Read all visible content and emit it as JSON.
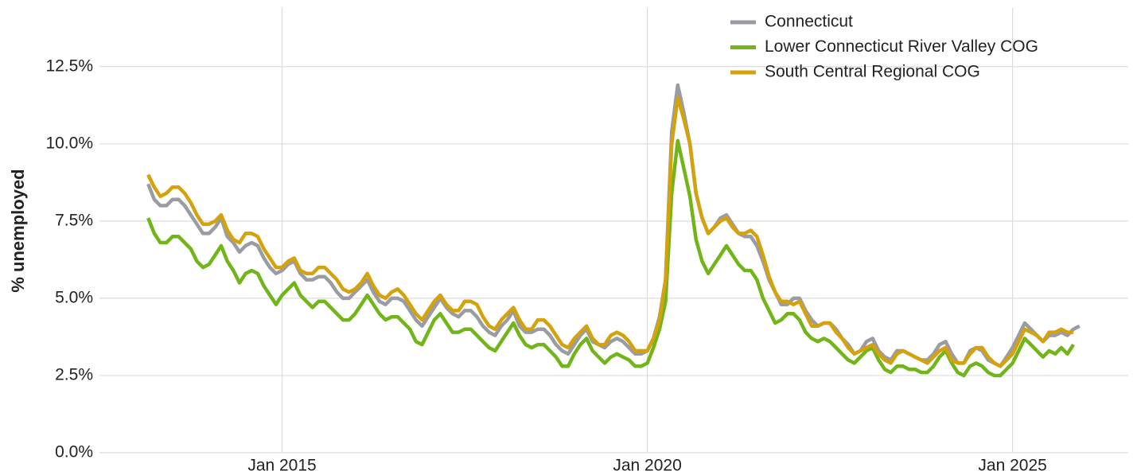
{
  "chart_data": {
    "type": "line",
    "y_label": "% unemployed",
    "x": [
      "2013-03",
      "2013-04",
      "2013-05",
      "2013-06",
      "2013-07",
      "2013-08",
      "2013-09",
      "2013-10",
      "2013-11",
      "2013-12",
      "2014-01",
      "2014-02",
      "2014-03",
      "2014-04",
      "2014-05",
      "2014-06",
      "2014-07",
      "2014-08",
      "2014-09",
      "2014-10",
      "2014-11",
      "2014-12",
      "2015-01",
      "2015-02",
      "2015-03",
      "2015-04",
      "2015-05",
      "2015-06",
      "2015-07",
      "2015-08",
      "2015-09",
      "2015-10",
      "2015-11",
      "2015-12",
      "2016-01",
      "2016-02",
      "2016-03",
      "2016-04",
      "2016-05",
      "2016-06",
      "2016-07",
      "2016-08",
      "2016-09",
      "2016-10",
      "2016-11",
      "2016-12",
      "2017-01",
      "2017-02",
      "2017-03",
      "2017-04",
      "2017-05",
      "2017-06",
      "2017-07",
      "2017-08",
      "2017-09",
      "2017-10",
      "2017-11",
      "2017-12",
      "2018-01",
      "2018-02",
      "2018-03",
      "2018-04",
      "2018-05",
      "2018-06",
      "2018-07",
      "2018-08",
      "2018-09",
      "2018-10",
      "2018-11",
      "2018-12",
      "2019-01",
      "2019-02",
      "2019-03",
      "2019-04",
      "2019-05",
      "2019-06",
      "2019-07",
      "2019-08",
      "2019-09",
      "2019-10",
      "2019-11",
      "2019-12",
      "2020-01",
      "2020-02",
      "2020-03",
      "2020-04",
      "2020-05",
      "2020-06",
      "2020-07",
      "2020-08",
      "2020-09",
      "2020-10",
      "2020-11",
      "2020-12",
      "2021-01",
      "2021-02",
      "2021-03",
      "2021-04",
      "2021-05",
      "2021-06",
      "2021-07",
      "2021-08",
      "2021-09",
      "2021-10",
      "2021-11",
      "2021-12",
      "2022-01",
      "2022-02",
      "2022-03",
      "2022-04",
      "2022-05",
      "2022-06",
      "2022-07",
      "2022-08",
      "2022-09",
      "2022-10",
      "2022-11",
      "2022-12",
      "2023-01",
      "2023-02",
      "2023-03",
      "2023-04",
      "2023-05",
      "2023-06",
      "2023-07",
      "2023-08",
      "2023-09",
      "2023-10",
      "2023-11",
      "2023-12",
      "2024-01",
      "2024-02",
      "2024-03",
      "2024-04",
      "2024-05",
      "2024-06",
      "2024-07",
      "2024-08",
      "2024-09",
      "2024-10",
      "2024-11",
      "2024-12",
      "2025-01",
      "2025-02",
      "2025-03",
      "2025-04",
      "2025-05",
      "2025-06",
      "2025-07",
      "2025-08",
      "2025-09",
      "2025-10",
      "2025-11",
      "2025-12"
    ],
    "series": [
      {
        "name": "Connecticut",
        "color": "#9a9ca3",
        "values": [
          8.7,
          8.2,
          8.0,
          8.0,
          8.2,
          8.2,
          8.0,
          7.7,
          7.4,
          7.1,
          7.1,
          7.3,
          7.6,
          7.0,
          6.8,
          6.5,
          6.7,
          6.8,
          6.7,
          6.3,
          6.0,
          5.8,
          5.9,
          6.1,
          6.2,
          5.8,
          5.6,
          5.6,
          5.7,
          5.7,
          5.5,
          5.2,
          5.0,
          5.0,
          5.2,
          5.4,
          5.6,
          5.2,
          4.9,
          4.8,
          5.0,
          5.0,
          4.9,
          4.6,
          4.3,
          4.1,
          4.4,
          4.7,
          5.0,
          4.7,
          4.5,
          4.4,
          4.6,
          4.6,
          4.4,
          4.1,
          3.9,
          3.8,
          4.1,
          4.3,
          4.6,
          4.1,
          3.9,
          3.9,
          4.0,
          4.0,
          3.8,
          3.5,
          3.3,
          3.2,
          3.5,
          3.8,
          4.0,
          3.6,
          3.5,
          3.4,
          3.6,
          3.7,
          3.6,
          3.4,
          3.2,
          3.2,
          3.3,
          3.7,
          4.4,
          5.6,
          10.4,
          11.9,
          11.0,
          10.0,
          8.4,
          7.6,
          7.1,
          7.3,
          7.6,
          7.7,
          7.4,
          7.1,
          7.0,
          7.0,
          6.7,
          6.2,
          5.6,
          5.2,
          4.8,
          4.8,
          5.0,
          5.0,
          4.6,
          4.3,
          4.1,
          4.2,
          4.2,
          4.0,
          3.7,
          3.5,
          3.2,
          3.3,
          3.6,
          3.7,
          3.3,
          3.1,
          3.0,
          3.3,
          3.3,
          3.2,
          3.1,
          3.0,
          3.0,
          3.2,
          3.5,
          3.6,
          3.2,
          2.9,
          2.9,
          3.3,
          3.4,
          3.3,
          3.0,
          2.9,
          2.8,
          3.1,
          3.4,
          3.8,
          4.2,
          4.0,
          3.8,
          3.6,
          3.8,
          3.8,
          3.9,
          3.8,
          4.0,
          4.1
        ]
      },
      {
        "name": "Lower Connecticut River Valley COG",
        "color": "#72b51a",
        "values": [
          7.6,
          7.1,
          6.8,
          6.8,
          7.0,
          7.0,
          6.8,
          6.6,
          6.2,
          6.0,
          6.1,
          6.4,
          6.7,
          6.2,
          5.9,
          5.5,
          5.8,
          5.9,
          5.8,
          5.4,
          5.1,
          4.8,
          5.1,
          5.3,
          5.5,
          5.1,
          4.9,
          4.7,
          4.9,
          4.9,
          4.7,
          4.5,
          4.3,
          4.3,
          4.5,
          4.8,
          5.1,
          4.8,
          4.5,
          4.3,
          4.4,
          4.4,
          4.2,
          4.0,
          3.6,
          3.5,
          3.9,
          4.3,
          4.5,
          4.2,
          3.9,
          3.9,
          4.0,
          4.0,
          3.8,
          3.6,
          3.4,
          3.3,
          3.6,
          3.9,
          4.2,
          3.8,
          3.5,
          3.4,
          3.5,
          3.5,
          3.3,
          3.1,
          2.8,
          2.8,
          3.2,
          3.5,
          3.7,
          3.3,
          3.1,
          2.9,
          3.1,
          3.2,
          3.1,
          3.0,
          2.8,
          2.8,
          2.9,
          3.4,
          4.0,
          4.9,
          8.4,
          10.1,
          9.2,
          8.3,
          6.9,
          6.2,
          5.8,
          6.1,
          6.4,
          6.7,
          6.4,
          6.1,
          5.9,
          5.9,
          5.6,
          5.0,
          4.6,
          4.2,
          4.3,
          4.5,
          4.5,
          4.3,
          3.9,
          3.7,
          3.6,
          3.7,
          3.6,
          3.4,
          3.2,
          3.0,
          2.9,
          3.1,
          3.3,
          3.4,
          3.0,
          2.7,
          2.6,
          2.8,
          2.8,
          2.7,
          2.7,
          2.6,
          2.6,
          2.8,
          3.1,
          3.3,
          2.9,
          2.6,
          2.5,
          2.8,
          2.9,
          2.8,
          2.6,
          2.5,
          2.5,
          2.7,
          2.9,
          3.3,
          3.7,
          3.5,
          3.3,
          3.1,
          3.3,
          3.2,
          3.4,
          3.2,
          3.5,
          null
        ]
      },
      {
        "name": "South Central Regional COG",
        "color": "#d4a20c",
        "values": [
          9.0,
          8.6,
          8.3,
          8.4,
          8.6,
          8.6,
          8.4,
          8.1,
          7.7,
          7.4,
          7.4,
          7.5,
          7.7,
          7.2,
          6.9,
          6.8,
          7.1,
          7.1,
          7.0,
          6.6,
          6.3,
          6.0,
          6.0,
          6.2,
          6.3,
          5.9,
          5.8,
          5.8,
          6.0,
          6.0,
          5.8,
          5.6,
          5.3,
          5.2,
          5.3,
          5.5,
          5.8,
          5.4,
          5.1,
          5.0,
          5.2,
          5.3,
          5.1,
          4.8,
          4.5,
          4.3,
          4.6,
          4.9,
          5.1,
          4.8,
          4.6,
          4.6,
          4.9,
          4.9,
          4.8,
          4.4,
          4.1,
          4.0,
          4.3,
          4.5,
          4.7,
          4.3,
          4.0,
          4.0,
          4.3,
          4.3,
          4.1,
          3.8,
          3.5,
          3.4,
          3.7,
          3.9,
          4.1,
          3.7,
          3.5,
          3.5,
          3.8,
          3.9,
          3.8,
          3.6,
          3.3,
          3.3,
          3.3,
          3.7,
          4.3,
          5.6,
          10.0,
          11.5,
          10.8,
          10.0,
          8.4,
          7.6,
          7.1,
          7.3,
          7.5,
          7.6,
          7.3,
          7.1,
          7.1,
          7.2,
          7.0,
          6.4,
          5.7,
          5.2,
          4.9,
          4.9,
          4.8,
          4.9,
          4.5,
          4.1,
          4.1,
          4.2,
          4.2,
          3.9,
          3.7,
          3.4,
          3.2,
          3.3,
          3.4,
          3.5,
          3.2,
          3.0,
          2.9,
          3.2,
          3.3,
          3.2,
          3.1,
          3.0,
          2.9,
          3.1,
          3.3,
          3.4,
          3.0,
          2.9,
          2.9,
          3.2,
          3.4,
          3.4,
          3.1,
          2.9,
          2.8,
          3.0,
          3.2,
          3.6,
          4.0,
          3.9,
          3.8,
          3.6,
          3.9,
          3.9,
          4.0,
          3.9,
          3.9,
          null
        ]
      }
    ],
    "xlim": [
      "2012-07",
      "2026-08"
    ],
    "xticks": [
      {
        "value": "2015-01",
        "label": "Jan 2015"
      },
      {
        "value": "2020-01",
        "label": "Jan 2020"
      },
      {
        "value": "2025-01",
        "label": "Jan 2025"
      }
    ],
    "ylim": [
      0,
      14.4
    ],
    "yticks": [
      {
        "value": 0,
        "label": "0.0%"
      },
      {
        "value": 2.5,
        "label": "2.5%"
      },
      {
        "value": 5,
        "label": "5.0%"
      },
      {
        "value": 7.5,
        "label": "7.5%"
      },
      {
        "value": 10,
        "label": "10.0%"
      },
      {
        "value": 12.5,
        "label": "12.5%"
      }
    ],
    "grid": true,
    "legend": "top-right"
  }
}
